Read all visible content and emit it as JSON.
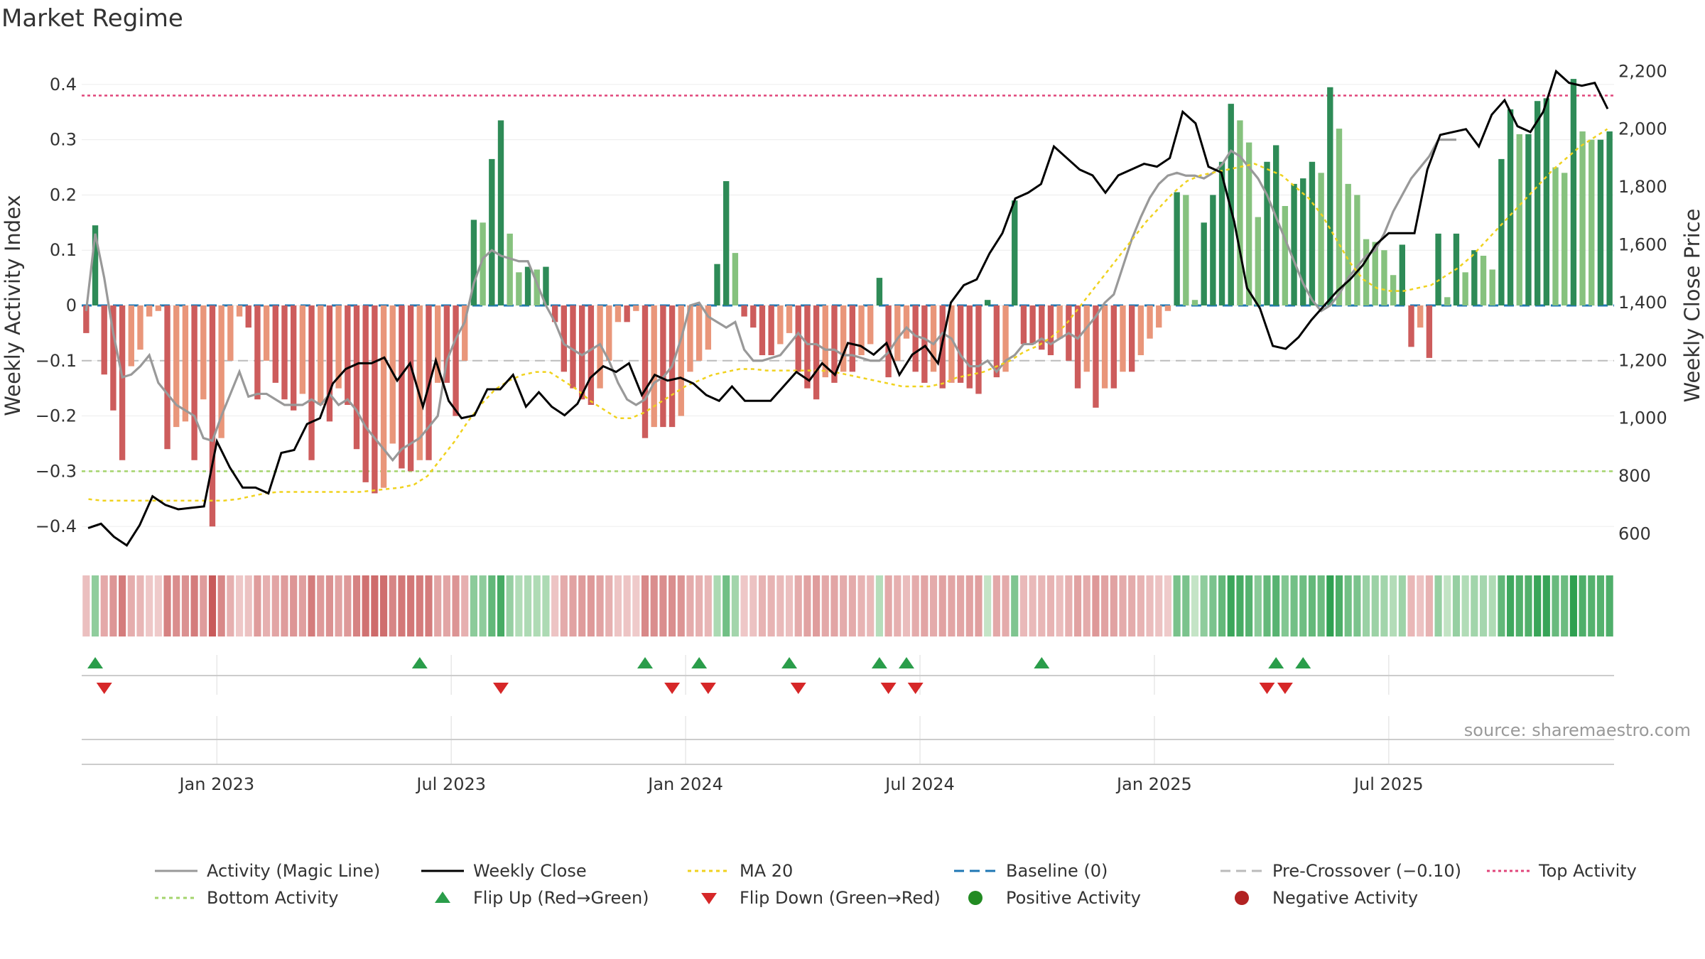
{
  "title": "Market Regime",
  "watermark": "source: sharemaestro.com",
  "chart_data": {
    "type": "bar",
    "title": "Market Regime",
    "y_left_label": "Weekly Activity Index",
    "y_right_label": "Weekly Close Price",
    "y_left_range": [
      -0.45,
      0.45
    ],
    "y_right_range": [
      530,
      2250
    ],
    "y_left_ticks": [
      -0.4,
      -0.3,
      -0.2,
      -0.1,
      0,
      0.1,
      0.2,
      0.3,
      0.4
    ],
    "y_left_tick_labels": [
      "−0.4",
      "−0.3",
      "−0.2",
      "−0.1",
      "0",
      "0.1",
      "0.2",
      "0.3",
      "0.4"
    ],
    "y_right_ticks": [
      600,
      800,
      1000,
      1200,
      1400,
      1600,
      1800,
      2000,
      2200
    ],
    "y_right_tick_labels": [
      "600",
      "800",
      "1,000",
      "1,200",
      "1,400",
      "1,600",
      "1,800",
      "2,000",
      "2,200"
    ],
    "x_ticks": [
      {
        "week": 14.5,
        "label": "Jan 2023"
      },
      {
        "week": 40.5,
        "label": "Jul 2023"
      },
      {
        "week": 66.5,
        "label": "Jan 2024"
      },
      {
        "week": 92.5,
        "label": "Jul 2024"
      },
      {
        "week": 118.5,
        "label": "Jan 2025"
      },
      {
        "week": 144.5,
        "label": "Jul 2025"
      }
    ],
    "reference_lines": {
      "top_activity": 0.38,
      "baseline": 0,
      "pre_crossover": -0.1,
      "bottom_activity": -0.3
    },
    "activity": [
      -0.05,
      0.145,
      -0.125,
      -0.19,
      -0.28,
      -0.11,
      -0.08,
      -0.02,
      -0.01,
      -0.26,
      -0.22,
      -0.21,
      -0.28,
      -0.17,
      -0.4,
      -0.24,
      -0.1,
      -0.02,
      -0.04,
      -0.17,
      -0.1,
      -0.14,
      -0.17,
      -0.19,
      -0.16,
      -0.28,
      -0.18,
      -0.21,
      -0.15,
      -0.18,
      -0.26,
      -0.32,
      -0.34,
      -0.33,
      -0.25,
      -0.295,
      -0.3,
      -0.28,
      -0.28,
      -0.14,
      -0.14,
      -0.2,
      -0.1,
      0.155,
      0.15,
      0.265,
      0.335,
      0.13,
      0.06,
      0.07,
      0.065,
      0.07,
      -0.03,
      -0.12,
      -0.15,
      -0.17,
      -0.18,
      -0.15,
      -0.1,
      -0.03,
      -0.03,
      -0.01,
      -0.24,
      -0.22,
      -0.22,
      -0.22,
      -0.2,
      -0.12,
      -0.1,
      -0.08,
      0.075,
      0.225,
      0.095,
      -0.02,
      -0.04,
      -0.09,
      -0.09,
      -0.07,
      -0.05,
      -0.12,
      -0.15,
      -0.17,
      -0.13,
      -0.14,
      -0.12,
      -0.12,
      -0.09,
      -0.07,
      0.05,
      -0.13,
      -0.1,
      -0.06,
      -0.12,
      -0.14,
      -0.12,
      -0.15,
      -0.14,
      -0.14,
      -0.15,
      -0.16,
      0.01,
      -0.13,
      -0.12,
      0.19,
      -0.07,
      -0.07,
      -0.08,
      -0.09,
      -0.06,
      -0.1,
      -0.15,
      -0.12,
      -0.185,
      -0.15,
      -0.15,
      -0.12,
      -0.12,
      -0.09,
      -0.06,
      -0.04,
      -0.01,
      0.205,
      0.2,
      0.01,
      0.15,
      0.2,
      0.26,
      0.365,
      0.335,
      0.295,
      0.16,
      0.26,
      0.29,
      0.18,
      0.22,
      0.23,
      0.26,
      0.24,
      0.395,
      0.32,
      0.22,
      0.2,
      0.12,
      0.115,
      0.1,
      0.055,
      0.11,
      -0.075,
      -0.04,
      -0.095,
      0.13,
      0.015,
      0.13,
      0.06,
      0.1,
      0.09,
      0.065,
      0.265,
      0.355,
      0.31,
      0.31,
      0.37,
      0.375,
      0.25,
      0.24,
      0.41,
      0.315,
      0.3,
      0.3,
      0.315
    ],
    "magic_line": [
      -0.01,
      0.13,
      0.05,
      -0.05,
      -0.13,
      -0.125,
      -0.11,
      -0.09,
      -0.14,
      -0.16,
      -0.18,
      -0.19,
      -0.2,
      -0.24,
      -0.245,
      -0.2,
      -0.16,
      -0.12,
      -0.165,
      -0.16,
      -0.16,
      -0.17,
      -0.18,
      -0.18,
      -0.18,
      -0.17,
      -0.18,
      -0.16,
      -0.18,
      -0.17,
      -0.19,
      -0.22,
      -0.24,
      -0.26,
      -0.28,
      -0.26,
      -0.25,
      -0.24,
      -0.22,
      -0.2,
      -0.1,
      -0.06,
      -0.03,
      0.04,
      0.085,
      0.1,
      0.09,
      0.085,
      0.08,
      0.08,
      0.04,
      0,
      -0.03,
      -0.07,
      -0.08,
      -0.09,
      -0.08,
      -0.07,
      -0.1,
      -0.14,
      -0.17,
      -0.18,
      -0.17,
      -0.14,
      -0.13,
      -0.11,
      -0.06,
      0,
      0.005,
      -0.02,
      -0.03,
      -0.04,
      -0.03,
      -0.08,
      -0.1,
      -0.1,
      -0.095,
      -0.09,
      -0.07,
      -0.05,
      -0.07,
      -0.07,
      -0.08,
      -0.08,
      -0.09,
      -0.09,
      -0.095,
      -0.1,
      -0.1,
      -0.085,
      -0.06,
      -0.04,
      -0.055,
      -0.06,
      -0.07,
      -0.05,
      -0.06,
      -0.09,
      -0.11,
      -0.11,
      -0.1,
      -0.12,
      -0.1,
      -0.09,
      -0.07,
      -0.07,
      -0.06,
      -0.07,
      -0.06,
      -0.05,
      -0.06,
      -0.04,
      -0.02,
      0.005,
      0.02,
      0.07,
      0.12,
      0.16,
      0.195,
      0.22,
      0.235,
      0.24,
      0.235,
      0.235,
      0.23,
      0.24,
      0.255,
      0.28,
      0.27,
      0.25,
      0.23,
      0.2,
      0.16,
      0.12,
      0.08,
      0.04,
      0.01,
      -0.01,
      0,
      0.02,
      0.05,
      0.07,
      0.09,
      0.1,
      0.13,
      0.17,
      0.2,
      0.23,
      0.25,
      0.27,
      0.3,
      0.3,
      0.3
    ],
    "weekly_close": [
      620,
      635,
      590,
      560,
      630,
      730,
      700,
      685,
      690,
      695,
      920,
      830,
      760,
      760,
      740,
      880,
      890,
      980,
      1000,
      1120,
      1170,
      1190,
      1190,
      1210,
      1130,
      1190,
      1040,
      1200,
      1060,
      1000,
      1010,
      1100,
      1100,
      1150,
      1040,
      1090,
      1040,
      1010,
      1050,
      1140,
      1180,
      1160,
      1190,
      1080,
      1150,
      1130,
      1140,
      1120,
      1080,
      1060,
      1110,
      1060,
      1060,
      1060,
      1110,
      1160,
      1130,
      1190,
      1150,
      1260,
      1250,
      1220,
      1260,
      1150,
      1220,
      1250,
      1190,
      1400,
      1460,
      1480,
      1570,
      1640,
      1760,
      1780,
      1810,
      1940,
      1900,
      1860,
      1840,
      1780,
      1840,
      1860,
      1880,
      1870,
      1900,
      2060,
      2020,
      1870,
      1850,
      1680,
      1450,
      1380,
      1250,
      1240,
      1280,
      1340,
      1390,
      1440,
      1480,
      1530,
      1600,
      1640,
      1640,
      1640,
      1860,
      1980,
      1990,
      2000,
      1940,
      2050,
      2100,
      2010,
      1990,
      2060,
      2200,
      2160,
      2150,
      2160,
      2070
    ],
    "ma20": [
      720,
      715,
      715,
      715,
      715,
      715,
      715,
      715,
      715,
      715,
      715,
      720,
      730,
      740,
      745,
      745,
      745,
      745,
      745,
      745,
      745,
      750,
      755,
      760,
      770,
      800,
      860,
      920,
      990,
      1050,
      1100,
      1130,
      1150,
      1160,
      1160,
      1130,
      1100,
      1060,
      1030,
      1000,
      1000,
      1020,
      1050,
      1080,
      1110,
      1130,
      1150,
      1160,
      1170,
      1170,
      1165,
      1165,
      1165,
      1165,
      1165,
      1160,
      1150,
      1140,
      1130,
      1120,
      1110,
      1110,
      1110,
      1120,
      1140,
      1150,
      1160,
      1180,
      1200,
      1230,
      1250,
      1280,
      1320,
      1380,
      1440,
      1500,
      1560,
      1620,
      1680,
      1730,
      1780,
      1820,
      1840,
      1850,
      1860,
      1870,
      1880,
      1860,
      1840,
      1800,
      1760,
      1700,
      1620,
      1540,
      1480,
      1450,
      1440,
      1440,
      1450,
      1460,
      1490,
      1520,
      1560,
      1610,
      1660,
      1710,
      1760,
      1810,
      1860,
      1900,
      1940,
      1970,
      2000
    ],
    "flip_up_weeks": [
      1,
      37,
      62,
      68,
      78,
      88,
      91,
      106,
      132,
      135
    ],
    "flip_down_weeks": [
      2,
      46,
      65,
      69,
      79,
      89,
      92,
      131,
      133
    ]
  },
  "legend": [
    {
      "label": "Activity (Magic Line)",
      "kind": "line",
      "color": "#999999",
      "dash": ""
    },
    {
      "label": "Weekly Close",
      "kind": "line",
      "color": "#000000",
      "dash": ""
    },
    {
      "label": "MA 20",
      "kind": "line",
      "color": "#f0d21e",
      "dash": "5,5"
    },
    {
      "label": "Baseline (0)",
      "kind": "line",
      "color": "#1f77b4",
      "dash": "14,8"
    },
    {
      "label": "Pre-Crossover (−0.10)",
      "kind": "line",
      "color": "#bbbbbb",
      "dash": "14,8"
    },
    {
      "label": "Top Activity",
      "kind": "line",
      "color": "#e0457a",
      "dash": "4,4"
    },
    {
      "label": "Bottom Activity",
      "kind": "line",
      "color": "#a4d46c",
      "dash": "5,5"
    },
    {
      "label": "Flip Up (Red→Green)",
      "kind": "tri-up",
      "color": "#2a9d4a",
      "dash": ""
    },
    {
      "label": "Flip Down (Green→Red)",
      "kind": "tri-down",
      "color": "#d62728",
      "dash": ""
    },
    {
      "label": "Positive Activity",
      "kind": "dot",
      "color": "#228b22",
      "dash": ""
    },
    {
      "label": "Negative Activity",
      "kind": "dot",
      "color": "#b22222",
      "dash": ""
    }
  ],
  "colors": {
    "pos_strong": "#2e8b57",
    "pos_light": "#86c27e",
    "neg_strong": "#cd5c5c",
    "neg_light": "#e9967a"
  }
}
